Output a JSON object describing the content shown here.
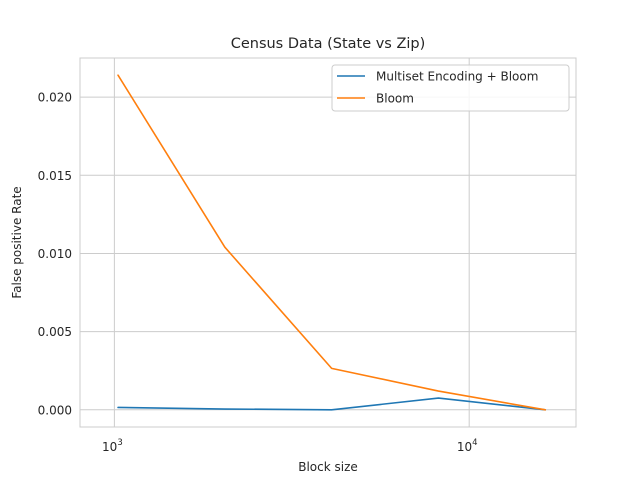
{
  "chart_data": {
    "type": "line",
    "title": "Census Data (State vs Zip)",
    "xlabel": "Block size",
    "ylabel": "False positive Rate",
    "xscale": "log",
    "xlim": [
      800,
      20000
    ],
    "ylim": [
      -0.0011,
      0.0225
    ],
    "yticks": [
      0.0,
      0.005,
      0.01,
      0.015,
      0.02
    ],
    "ytick_labels": [
      "0.000",
      "0.005",
      "0.010",
      "0.015",
      "0.020"
    ],
    "xticks": [
      1000,
      10000
    ],
    "xtick_labels": [
      {
        "base": "10",
        "exp": "3"
      },
      {
        "base": "10",
        "exp": "4"
      }
    ],
    "grid": true,
    "legend_position": "top-right",
    "series": [
      {
        "name": "Multiset Encoding + Bloom",
        "color": "#1f77b4",
        "x": [
          1024,
          2048,
          4096,
          8192,
          16384
        ],
        "y": [
          0.00015,
          5e-05,
          0.0,
          0.00075,
          0.0
        ]
      },
      {
        "name": "Bloom",
        "color": "#ff7f0e",
        "x": [
          1024,
          2048,
          4096,
          8192,
          16384
        ],
        "y": [
          0.0214,
          0.0104,
          0.00265,
          0.0012,
          0.0
        ]
      }
    ]
  }
}
